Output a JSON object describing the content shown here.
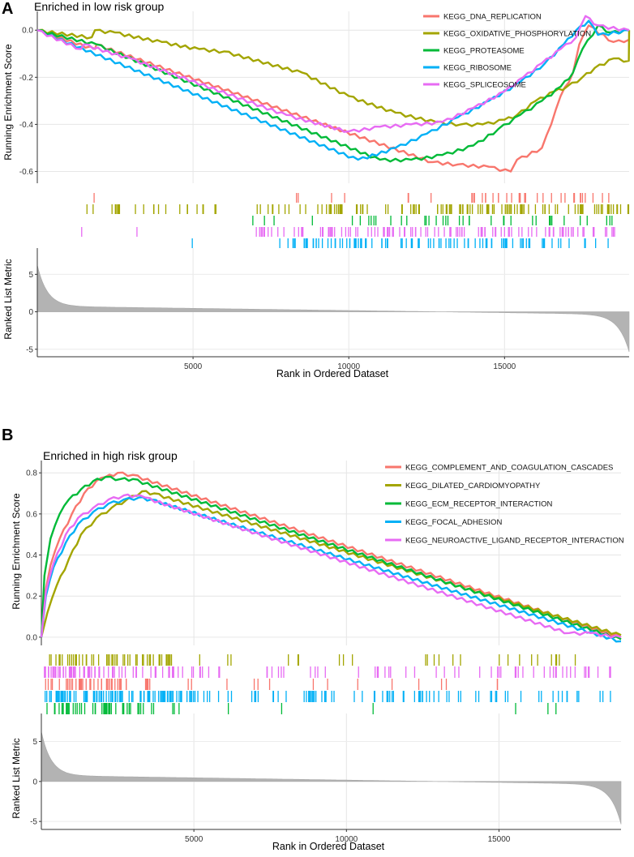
{
  "panels": [
    {
      "id": "A",
      "label": "A",
      "title": "Enriched in low risk group",
      "ylabel_top": "Running Enrichment Score",
      "ylabel_bottom": "Ranked List Metric",
      "xlabel": "Rank in Ordered Dataset",
      "xlim": [
        0,
        19000
      ],
      "ylim_top": [
        -0.65,
        0.08
      ],
      "yticks_top": [
        -0.6,
        -0.4,
        -0.2,
        0.0
      ],
      "ytick_labels_top": [
        "-0.6",
        "-0.4",
        "-0.2",
        "0.0"
      ],
      "ylim_bottom": [
        -6,
        8.5
      ],
      "yticks_bottom": [
        -5,
        0,
        5
      ],
      "ytick_labels_bottom": [
        "-5",
        "0",
        "5"
      ],
      "xticks": [
        5000,
        10000,
        15000
      ],
      "xtick_labels": [
        "5000",
        "10000",
        "15000"
      ],
      "legend_position": "top-right",
      "series": [
        {
          "name": "KEGG_DNA_REPLICATION",
          "color": "#F8766D",
          "x": [
            0,
            1850,
            1900,
            12700,
            13500,
            14500,
            15200,
            15400,
            16200,
            16500,
            16800,
            17200,
            17400,
            17700,
            18500,
            19000
          ],
          "y": [
            0,
            -0.08,
            -0.06,
            -0.56,
            -0.57,
            -0.58,
            -0.6,
            -0.55,
            -0.5,
            -0.4,
            -0.28,
            -0.18,
            -0.06,
            0.02,
            -0.05,
            -0.04
          ]
        },
        {
          "name": "KEGG_OXIDATIVE_PHOSPHORYLATION",
          "color": "#A3A500",
          "x": [
            0,
            1750,
            1850,
            2500,
            4000,
            5200,
            6000,
            8500,
            10000,
            11500,
            12800,
            13600,
            14300,
            15000,
            15400,
            16000,
            16600,
            17000,
            17500,
            17900,
            18500,
            18990,
            19000
          ],
          "y": [
            0,
            -0.03,
            0.0,
            -0.01,
            -0.05,
            -0.08,
            -0.09,
            -0.18,
            -0.28,
            -0.35,
            -0.39,
            -0.4,
            -0.4,
            -0.38,
            -0.36,
            -0.3,
            -0.26,
            -0.24,
            -0.2,
            -0.16,
            -0.12,
            -0.13,
            0.0
          ]
        },
        {
          "name": "KEGG_PROTEASOME",
          "color": "#00BA38",
          "x": [
            0,
            1900,
            11000,
            12000,
            13000,
            14000,
            14800,
            15500,
            16200,
            16800,
            17200,
            17500,
            18000,
            18400,
            19000
          ],
          "y": [
            0,
            -0.06,
            -0.55,
            -0.55,
            -0.53,
            -0.49,
            -0.42,
            -0.36,
            -0.3,
            -0.24,
            -0.18,
            -0.08,
            0.02,
            -0.01,
            0.0
          ]
        },
        {
          "name": "KEGG_RIBOSOME",
          "color": "#00B0F6",
          "x": [
            0,
            10300,
            11500,
            12500,
            13500,
            14500,
            15500,
            16300,
            16900,
            17300,
            17700,
            18000,
            19000
          ],
          "y": [
            0,
            -0.55,
            -0.5,
            -0.44,
            -0.37,
            -0.3,
            -0.22,
            -0.14,
            -0.06,
            0.0,
            0.04,
            -0.02,
            0.0
          ]
        },
        {
          "name": "KEGG_SPLICEOSOME",
          "color": "#E76BF3",
          "x": [
            0,
            1400,
            1500,
            3000,
            8000,
            10000,
            11000,
            12000,
            13000,
            14000,
            15000,
            15600,
            16200,
            16800,
            17300,
            17600,
            18000,
            19000
          ],
          "y": [
            0,
            -0.08,
            -0.06,
            -0.12,
            -0.36,
            -0.43,
            -0.41,
            -0.4,
            -0.39,
            -0.33,
            -0.26,
            -0.2,
            -0.14,
            -0.08,
            -0.03,
            0.06,
            0.02,
            0.0
          ]
        }
      ],
      "hits": [
        {
          "series": 0,
          "n": 40,
          "seed": 11,
          "ranges": [
            [
              1800,
              1900,
              1
            ],
            [
              7900,
              13500,
              7
            ],
            [
              13800,
              18500,
              32
            ]
          ]
        },
        {
          "series": 1,
          "n": 150,
          "seed": 23,
          "ranges": [
            [
              1400,
              6200,
              25
            ],
            [
              6900,
              8900,
              10
            ],
            [
              9000,
              19000,
              115
            ]
          ]
        },
        {
          "series": 2,
          "n": 40,
          "seed": 37,
          "ranges": [
            [
              6800,
              10000,
              4
            ],
            [
              10000,
              18500,
              36
            ]
          ]
        },
        {
          "series": 4,
          "n": 115,
          "seed": 41,
          "ranges": [
            [
              1400,
              1500,
              1
            ],
            [
              3100,
              3200,
              1
            ],
            [
              7000,
              18600,
              113
            ]
          ]
        },
        {
          "series": 3,
          "n": 100,
          "seed": 53,
          "ranges": [
            [
              4950,
              5050,
              1
            ],
            [
              7700,
              18400,
              99
            ]
          ]
        }
      ]
    },
    {
      "id": "B",
      "label": "B",
      "title": "Enriched in high risk group",
      "ylabel_top": "Running Enrichment Score",
      "ylabel_bottom": "Ranked List Metric",
      "xlabel": "Rank in Ordered Dataset",
      "xlim": [
        0,
        19000
      ],
      "ylim_top": [
        -0.04,
        0.86
      ],
      "yticks_top": [
        0.0,
        0.2,
        0.4,
        0.6,
        0.8
      ],
      "ytick_labels_top": [
        "0.0",
        "0.2",
        "0.4",
        "0.6",
        "0.8"
      ],
      "ylim_bottom": [
        -6,
        8.5
      ],
      "yticks_bottom": [
        -5,
        0,
        5
      ],
      "ytick_labels_bottom": [
        "-5",
        "0",
        "5"
      ],
      "xticks": [
        5000,
        10000,
        15000
      ],
      "xtick_labels": [
        "5000",
        "10000",
        "15000"
      ],
      "legend_position": "top-right",
      "series": [
        {
          "name": "KEGG_COMPLEMENT_AND_COAGULATION_CASCADES",
          "color": "#F8766D",
          "x": [
            0,
            100,
            300,
            600,
            1000,
            1400,
            1800,
            2100,
            2500,
            3000,
            19000
          ],
          "y": [
            0,
            0.2,
            0.35,
            0.48,
            0.6,
            0.7,
            0.76,
            0.78,
            0.8,
            0.79,
            0.0
          ]
        },
        {
          "name": "KEGG_DILATED_CARDIOMYOPATHY",
          "color": "#A3A500",
          "x": [
            0,
            200,
            500,
            900,
            1300,
            1800,
            2300,
            2800,
            3300,
            3700,
            19000
          ],
          "y": [
            0,
            0.12,
            0.25,
            0.38,
            0.5,
            0.58,
            0.63,
            0.67,
            0.71,
            0.7,
            0.01
          ]
        },
        {
          "name": "KEGG_ECM_RECEPTOR_INTERACTION",
          "color": "#00BA38",
          "x": [
            0,
            100,
            300,
            600,
            900,
            1300,
            1700,
            2100,
            2600,
            3000,
            19000
          ],
          "y": [
            0,
            0.3,
            0.48,
            0.6,
            0.67,
            0.72,
            0.76,
            0.78,
            0.77,
            0.77,
            -0.01
          ]
        },
        {
          "name": "KEGG_FOCAL_ADHESION",
          "color": "#00B0F6",
          "x": [
            0,
            150,
            400,
            800,
            1200,
            1700,
            2200,
            2700,
            3200,
            3600,
            19000
          ],
          "y": [
            0,
            0.2,
            0.34,
            0.46,
            0.55,
            0.61,
            0.65,
            0.67,
            0.68,
            0.67,
            -0.02
          ]
        },
        {
          "name": "KEGG_NEUROACTIVE_LIGAND_RECEPTOR_INTERACTION",
          "color": "#E76BF3",
          "x": [
            0,
            150,
            400,
            800,
            1200,
            1700,
            2200,
            2700,
            3100,
            3400,
            17300,
            18000,
            19000
          ],
          "y": [
            0,
            0.22,
            0.36,
            0.5,
            0.58,
            0.63,
            0.67,
            0.69,
            0.69,
            0.68,
            0.02,
            0.02,
            0.0
          ]
        }
      ],
      "hits": [
        {
          "series": 1,
          "n": 75,
          "seed": 61,
          "ranges": [
            [
              100,
              4500,
              50
            ],
            [
              4500,
              17800,
              25
            ]
          ]
        },
        {
          "series": 4,
          "n": 120,
          "seed": 67,
          "ranges": [
            [
              100,
              6000,
              70
            ],
            [
              6000,
              18800,
              50
            ]
          ]
        },
        {
          "series": 0,
          "n": 60,
          "seed": 71,
          "ranges": [
            [
              100,
              3600,
              45
            ],
            [
              3600,
              15600,
              15
            ]
          ]
        },
        {
          "series": 3,
          "n": 180,
          "seed": 79,
          "ranges": [
            [
              100,
              5000,
              100
            ],
            [
              5000,
              18800,
              80
            ]
          ]
        },
        {
          "series": 2,
          "n": 55,
          "seed": 83,
          "ranges": [
            [
              100,
              3000,
              40
            ],
            [
              3000,
              18000,
              15
            ]
          ]
        }
      ]
    }
  ],
  "chart_data": [
    {
      "type": "line",
      "title": "Enriched in low risk group",
      "xlabel": "Rank in Ordered Dataset",
      "ylabel": "Running Enrichment Score",
      "xlim": [
        0,
        19000
      ],
      "ylim": [
        -0.65,
        0.08
      ],
      "series": [
        {
          "name": "KEGG_DNA_REPLICATION",
          "min_es": -0.6,
          "min_rank": 15200
        },
        {
          "name": "KEGG_OXIDATIVE_PHOSPHORYLATION",
          "min_es": -0.4,
          "min_rank": 13600
        },
        {
          "name": "KEGG_PROTEASOME",
          "min_es": -0.55,
          "min_rank": 11500
        },
        {
          "name": "KEGG_RIBOSOME",
          "min_es": -0.55,
          "min_rank": 10300
        },
        {
          "name": "KEGG_SPLICEOSOME",
          "min_es": -0.43,
          "min_rank": 10000
        }
      ],
      "secondary_ylabel": "Ranked List Metric",
      "secondary_ylim": [
        -6,
        8.5
      ]
    },
    {
      "type": "line",
      "title": "Enriched in high risk group",
      "xlabel": "Rank in Ordered Dataset",
      "ylabel": "Running Enrichment Score",
      "xlim": [
        0,
        19000
      ],
      "ylim": [
        -0.04,
        0.86
      ],
      "series": [
        {
          "name": "KEGG_COMPLEMENT_AND_COAGULATION_CASCADES",
          "max_es": 0.8,
          "max_rank": 2500
        },
        {
          "name": "KEGG_DILATED_CARDIOMYOPATHY",
          "max_es": 0.71,
          "max_rank": 3300
        },
        {
          "name": "KEGG_ECM_RECEPTOR_INTERACTION",
          "max_es": 0.78,
          "max_rank": 2100
        },
        {
          "name": "KEGG_FOCAL_ADHESION",
          "max_es": 0.68,
          "max_rank": 3200
        },
        {
          "name": "KEGG_NEUROACTIVE_LIGAND_RECEPTOR_INTERACTION",
          "max_es": 0.69,
          "max_rank": 2700
        }
      ],
      "secondary_ylabel": "Ranked List Metric",
      "secondary_ylim": [
        -6,
        8.5
      ]
    }
  ]
}
